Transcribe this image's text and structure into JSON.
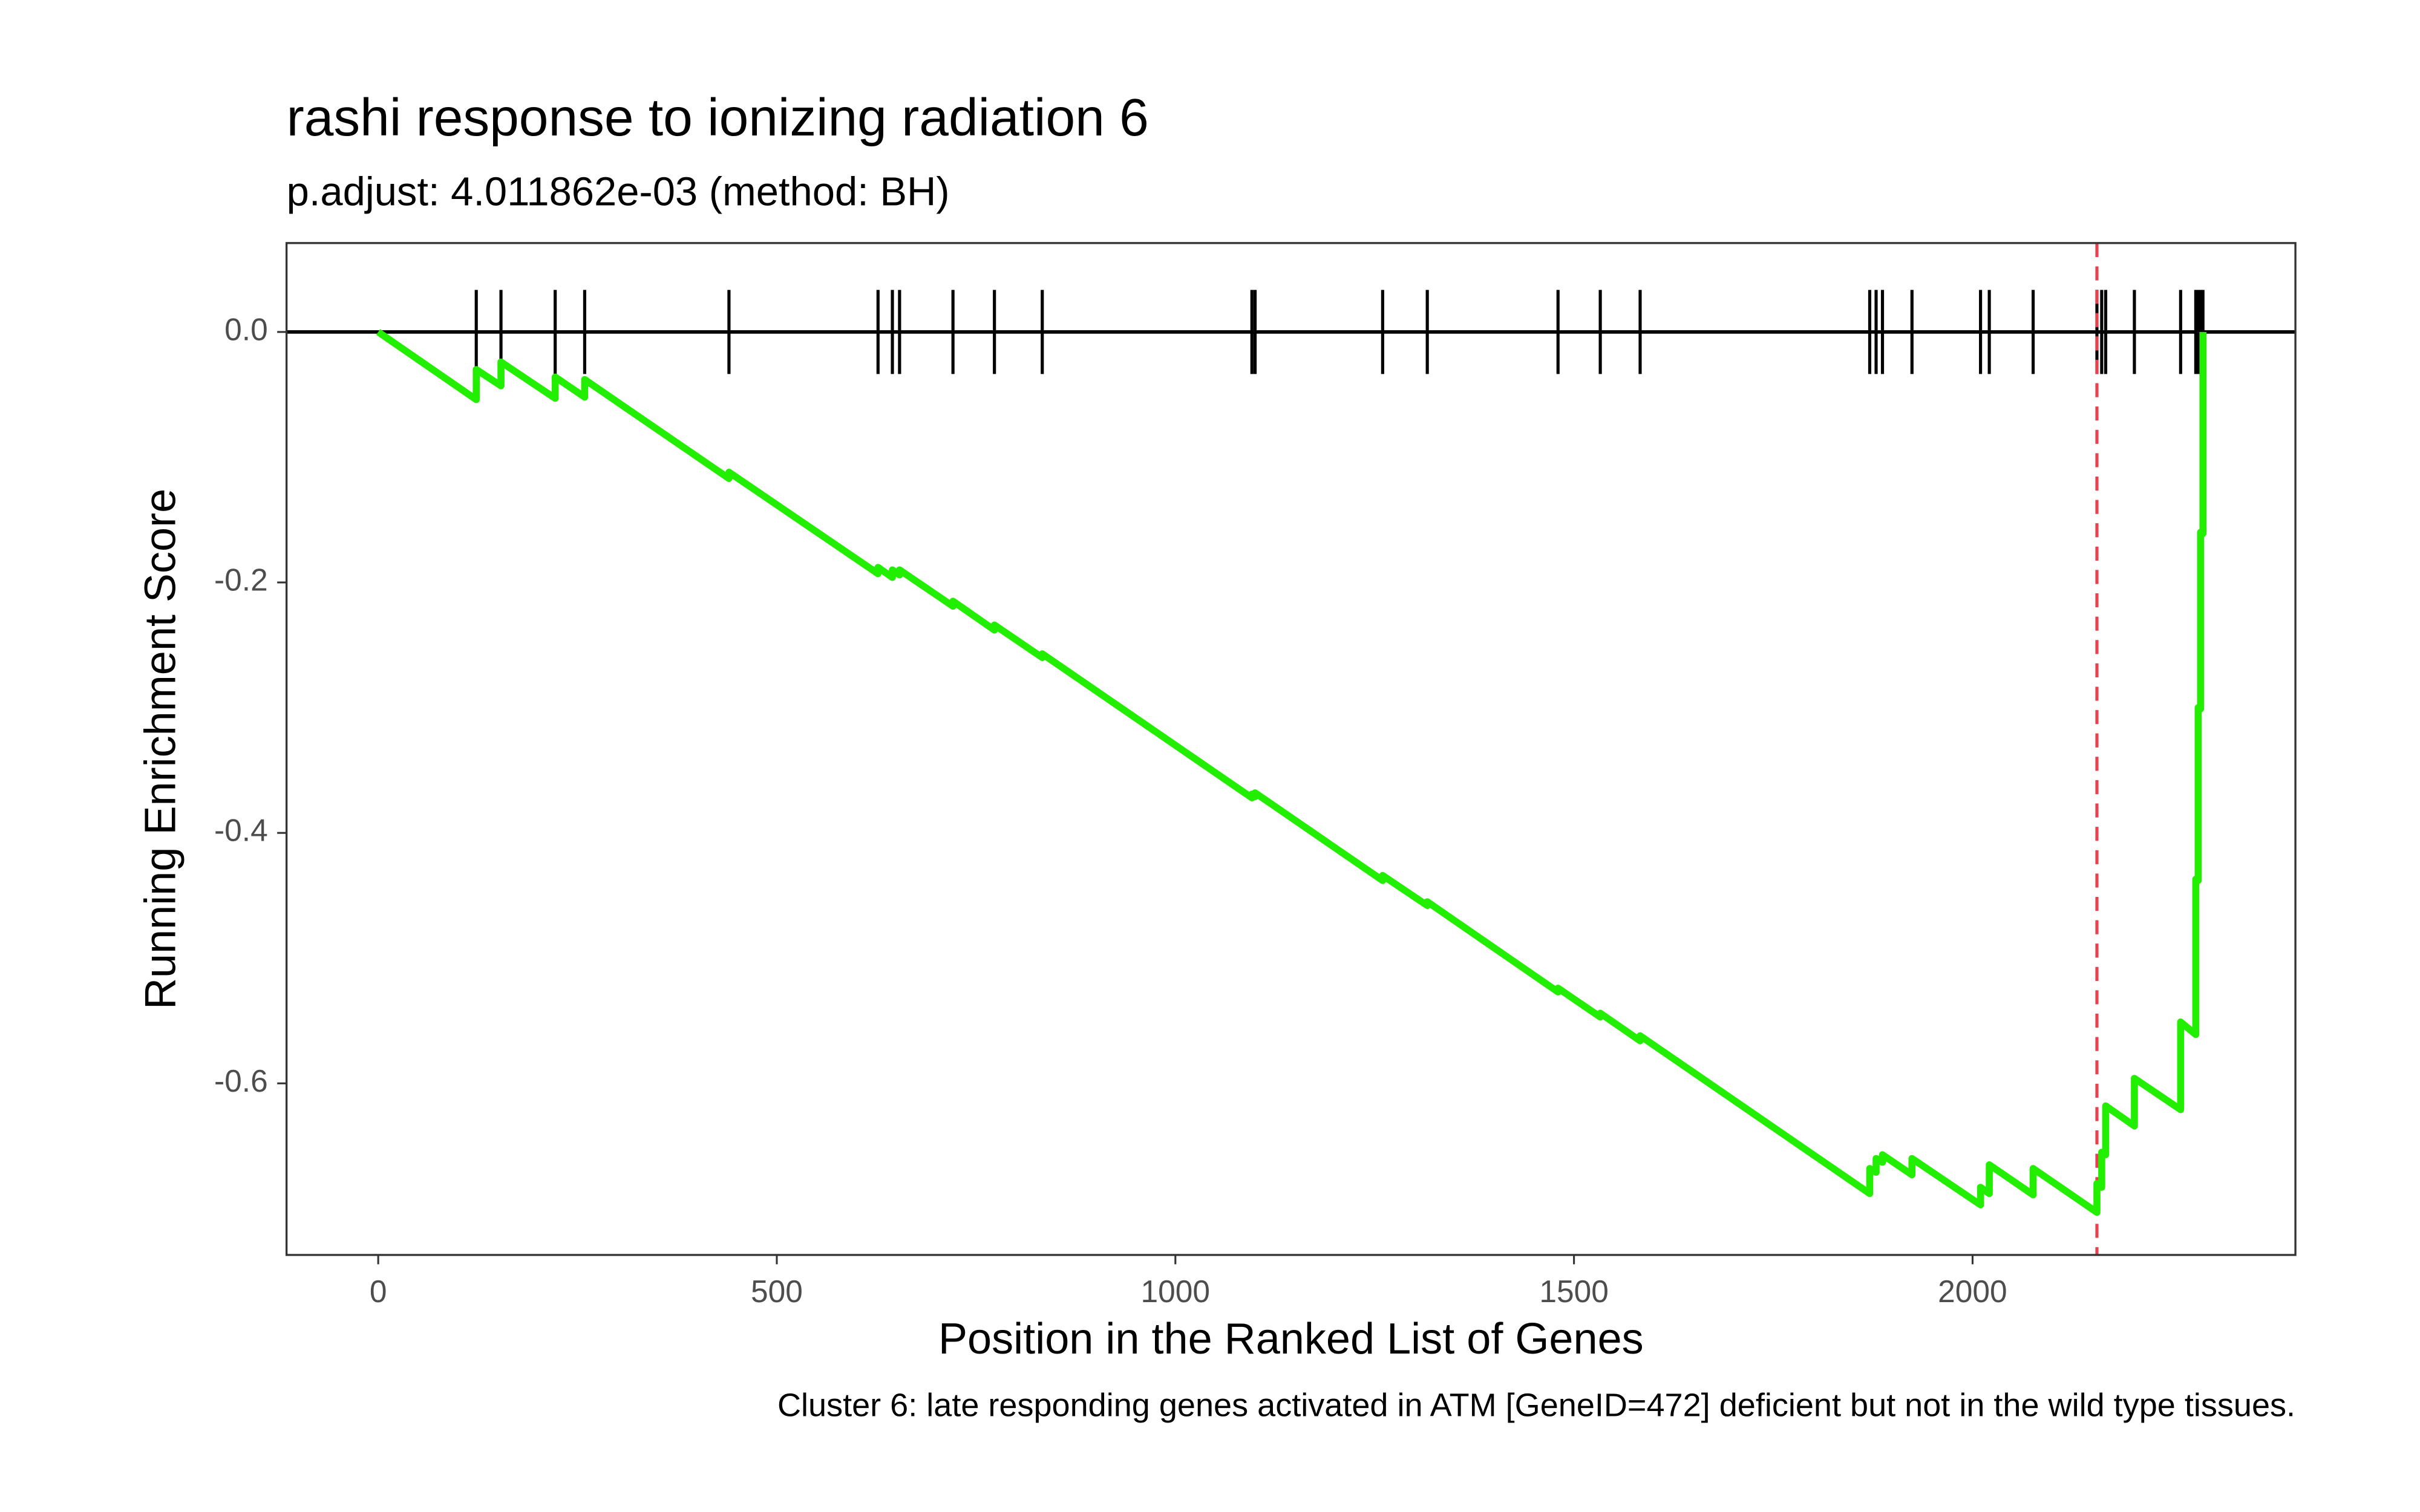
{
  "chart_data": {
    "type": "line",
    "title": "rashi response to ionizing radiation 6",
    "subtitle": "p.adjust: 4.011862e-03 (method: BH)",
    "x_label": "Position in the Ranked List of Genes",
    "y_label": "Running Enrichment Score",
    "caption": "Cluster 6: late responding genes activated in ATM [GeneID=472] deficient but not in the wild type tissues.",
    "xlim": [
      -115,
      2405
    ],
    "ylim": [
      -0.737,
      0.071
    ],
    "xticks": [
      0,
      500,
      1000,
      1500,
      2000
    ],
    "yticks": [
      {
        "value": 0,
        "label": "0.0"
      },
      -0.2,
      -0.4,
      -0.6
    ],
    "grid": false,
    "vline": 2156,
    "vline_color": "#e8404e",
    "series": [
      {
        "name": "Running Enrichment Score",
        "color": "#22ee00",
        "x": [
          0,
          123,
          123,
          154,
          154,
          222,
          222,
          259,
          259,
          440,
          440,
          627,
          627,
          645,
          645,
          654,
          654,
          721,
          721,
          773,
          773,
          833,
          833,
          1096,
          1096,
          1100,
          1100,
          1260,
          1260,
          1316,
          1316,
          1480,
          1480,
          1533,
          1533,
          1583,
          1583,
          1871,
          1871,
          1879,
          1879,
          1887,
          1887,
          1924,
          1924,
          2010,
          2010,
          2021,
          2021,
          2076,
          2076,
          2156,
          2156,
          2162,
          2162,
          2167,
          2167,
          2203,
          2203,
          2261,
          2261,
          2280,
          2280,
          2283,
          2283,
          2286,
          2286,
          2289,
          2289
        ],
        "values": [
          0,
          -0.054,
          -0.03,
          -0.043,
          -0.024,
          -0.053,
          -0.036,
          -0.052,
          -0.038,
          -0.117,
          -0.112,
          -0.193,
          -0.188,
          -0.196,
          -0.19,
          -0.194,
          -0.19,
          -0.219,
          -0.215,
          -0.238,
          -0.234,
          -0.26,
          -0.257,
          -0.372,
          -0.369,
          -0.371,
          -0.368,
          -0.438,
          -0.434,
          -0.458,
          -0.455,
          -0.527,
          -0.524,
          -0.547,
          -0.544,
          -0.566,
          -0.562,
          -0.688,
          -0.668,
          -0.671,
          -0.66,
          -0.663,
          -0.657,
          -0.673,
          -0.66,
          -0.697,
          -0.683,
          -0.688,
          -0.665,
          -0.689,
          -0.668,
          -0.703,
          -0.68,
          -0.683,
          -0.655,
          -0.657,
          -0.618,
          -0.634,
          -0.596,
          -0.621,
          -0.551,
          -0.561,
          -0.437,
          -0.438,
          -0.3,
          -0.301,
          -0.16,
          -0.161,
          0.0
        ]
      }
    ],
    "hits": [
      123,
      154,
      222,
      259,
      440,
      627,
      645,
      654,
      721,
      773,
      833,
      1096,
      1100,
      1260,
      1316,
      1480,
      1533,
      1583,
      1871,
      1879,
      1887,
      1924,
      2010,
      2021,
      2076,
      2156,
      2162,
      2167,
      2203,
      2261,
      2280,
      2283,
      2286,
      2289
    ]
  }
}
